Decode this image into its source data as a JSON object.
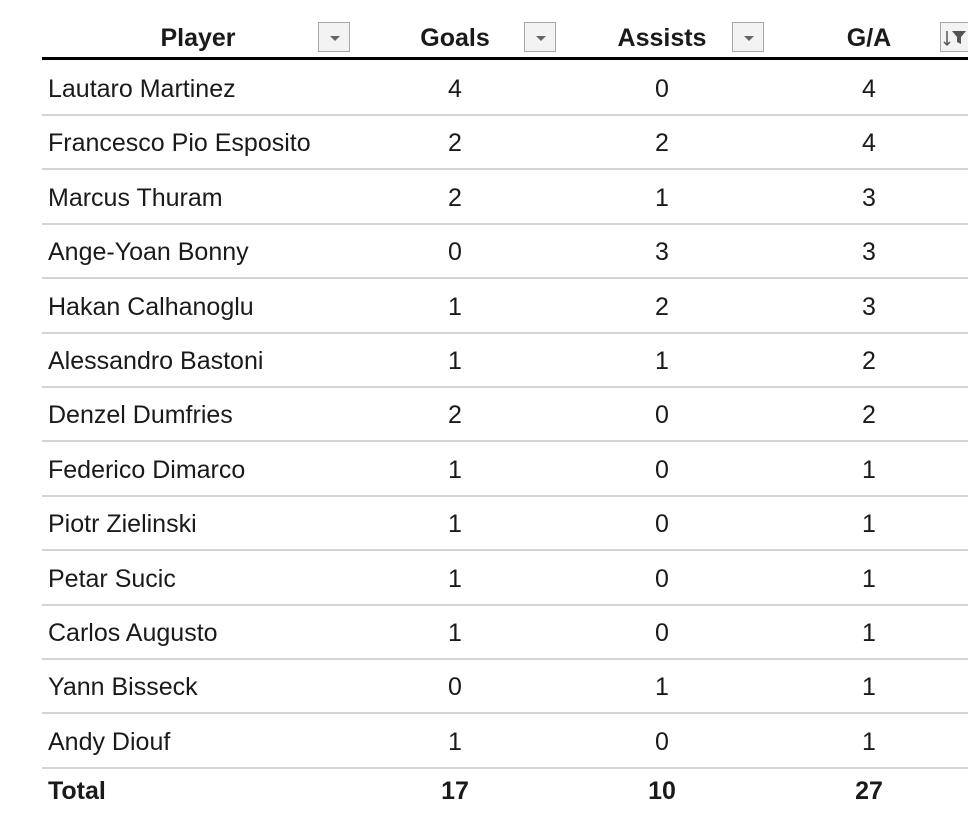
{
  "table": {
    "header": [
      "Player",
      "Goals",
      "Assists",
      "G/A"
    ],
    "rows": [
      [
        "Lautaro Martinez",
        4,
        0,
        4
      ],
      [
        "Francesco Pio Esposito",
        2,
        2,
        4
      ],
      [
        "Marcus Thuram",
        2,
        1,
        3
      ],
      [
        "Ange-Yoan Bonny",
        0,
        3,
        3
      ],
      [
        "Hakan Calhanoglu",
        1,
        2,
        3
      ],
      [
        "Alessandro Bastoni",
        1,
        1,
        2
      ],
      [
        "Denzel Dumfries",
        2,
        0,
        2
      ],
      [
        "Federico Dimarco",
        1,
        0,
        1
      ],
      [
        "Piotr Zielinski",
        1,
        0,
        1
      ],
      [
        "Petar Sucic",
        1,
        0,
        1
      ],
      [
        "Carlos Augusto",
        1,
        0,
        1
      ],
      [
        "Yann Bisseck",
        0,
        1,
        1
      ],
      [
        "Andy Diouf",
        1,
        0,
        1
      ]
    ],
    "total": [
      "Total",
      17,
      10,
      27
    ]
  }
}
